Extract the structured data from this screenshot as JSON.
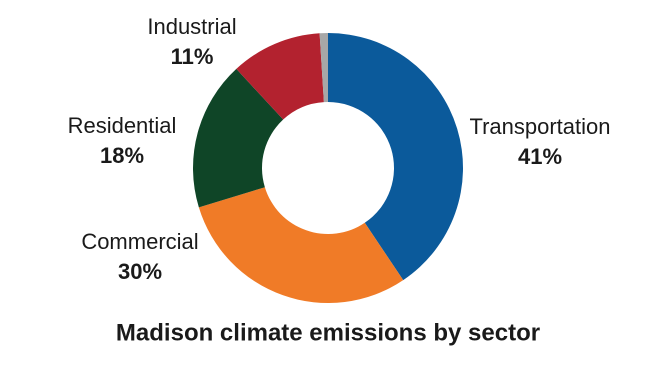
{
  "chart_data": {
    "type": "donut",
    "title": "Madison climate emissions by sector",
    "categories": [
      "Transportation",
      "Commercial",
      "Residential",
      "Industrial",
      null
    ],
    "values": [
      41,
      30,
      18,
      11,
      1
    ],
    "value_labels": [
      "41%",
      "30%",
      "18%",
      "11%",
      null
    ],
    "colors": [
      "#0b5a9b",
      "#f07b27",
      "#0f4527",
      "#b3222f",
      "#a7a7a7"
    ]
  }
}
